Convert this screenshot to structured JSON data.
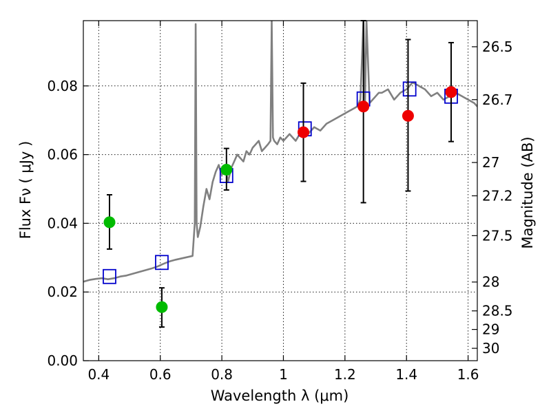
{
  "chart_data": {
    "type": "scatter",
    "title": "",
    "xlabel": "Wavelength  λ (μm)",
    "ylabel": "Flux  Fν  ( μJy )",
    "ylabel_right": "Magnitude (AB)",
    "xlim": [
      0.35,
      1.63
    ],
    "ylim": [
      0.0,
      0.099
    ],
    "grid": true,
    "x_ticks": [
      0.4,
      0.6,
      0.8,
      1.0,
      1.2,
      1.4,
      1.6
    ],
    "x_tick_labels": [
      "0.4",
      "0.6",
      "0.8",
      "1",
      "1.2",
      "1.4",
      "1.6"
    ],
    "y_ticks": [
      0.0,
      0.02,
      0.04,
      0.06,
      0.08
    ],
    "y_tick_labels": [
      "0.00",
      "0.02",
      "0.04",
      "0.06",
      "0.08"
    ],
    "right_ticks": [
      {
        "label": "26.5",
        "flux": 0.0914
      },
      {
        "label": "26.7",
        "flux": 0.076
      },
      {
        "label": "27",
        "flux": 0.0577
      },
      {
        "label": "27.2",
        "flux": 0.048
      },
      {
        "label": "27.5",
        "flux": 0.0364
      },
      {
        "label": "28",
        "flux": 0.0229
      },
      {
        "label": "28.5",
        "flux": 0.0145
      },
      {
        "label": "29",
        "flux": 0.0091
      },
      {
        "label": "30",
        "flux": 0.0036
      }
    ],
    "series": [
      {
        "name": "model_spectrum",
        "kind": "line",
        "color": "#808080",
        "x": [
          0.35,
          0.37,
          0.39,
          0.41,
          0.43,
          0.45,
          0.47,
          0.49,
          0.51,
          0.53,
          0.55,
          0.57,
          0.59,
          0.61,
          0.63,
          0.65,
          0.67,
          0.69,
          0.705,
          0.712,
          0.715,
          0.718,
          0.722,
          0.73,
          0.74,
          0.75,
          0.76,
          0.77,
          0.78,
          0.79,
          0.8,
          0.81,
          0.82,
          0.83,
          0.84,
          0.85,
          0.86,
          0.87,
          0.88,
          0.89,
          0.9,
          0.91,
          0.92,
          0.93,
          0.94,
          0.95,
          0.958,
          0.962,
          0.966,
          0.97,
          0.98,
          0.99,
          1.0,
          1.02,
          1.04,
          1.06,
          1.08,
          1.1,
          1.12,
          1.14,
          1.16,
          1.18,
          1.2,
          1.22,
          1.24,
          1.25,
          1.26,
          1.265,
          1.27,
          1.28,
          1.29,
          1.3,
          1.31,
          1.32,
          1.34,
          1.36,
          1.38,
          1.4,
          1.42,
          1.44,
          1.46,
          1.48,
          1.5,
          1.52,
          1.54,
          1.56,
          1.58,
          1.6,
          1.62,
          1.63
        ],
        "y": [
          0.023,
          0.0235,
          0.0238,
          0.024,
          0.0237,
          0.024,
          0.0245,
          0.0248,
          0.0253,
          0.0258,
          0.0263,
          0.0268,
          0.0274,
          0.0282,
          0.0289,
          0.0294,
          0.0298,
          0.0302,
          0.0305,
          0.04,
          0.098,
          0.04,
          0.036,
          0.039,
          0.045,
          0.05,
          0.047,
          0.052,
          0.055,
          0.057,
          0.054,
          0.057,
          0.052,
          0.056,
          0.058,
          0.06,
          0.059,
          0.058,
          0.061,
          0.06,
          0.062,
          0.063,
          0.064,
          0.061,
          0.062,
          0.063,
          0.064,
          0.099,
          0.065,
          0.064,
          0.063,
          0.065,
          0.064,
          0.066,
          0.064,
          0.067,
          0.066,
          0.068,
          0.067,
          0.069,
          0.07,
          0.071,
          0.072,
          0.073,
          0.074,
          0.076,
          0.099,
          0.074,
          0.099,
          0.075,
          0.076,
          0.077,
          0.078,
          0.078,
          0.079,
          0.076,
          0.078,
          0.079,
          0.081,
          0.08,
          0.079,
          0.077,
          0.078,
          0.076,
          0.077,
          0.078,
          0.077,
          0.076,
          0.075,
          0.074
        ]
      },
      {
        "name": "model_photometry",
        "kind": "open_square",
        "color": "#0000cc",
        "x": [
          0.435,
          0.605,
          0.815,
          1.07,
          1.26,
          1.41,
          1.545
        ],
        "y": [
          0.0245,
          0.0286,
          0.0539,
          0.0675,
          0.0762,
          0.0791,
          0.077
        ]
      },
      {
        "name": "observed_green",
        "kind": "filled_circle",
        "color": "#00bb00",
        "x": [
          0.435,
          0.605,
          0.815
        ],
        "y": [
          0.0403,
          0.0156,
          0.0556
        ],
        "err_low": [
          0.0325,
          0.0098,
          0.0497
        ],
        "err_high": [
          0.0483,
          0.0212,
          0.0618
        ]
      },
      {
        "name": "observed_red",
        "kind": "filled_circle",
        "color": "#ee0000",
        "x": [
          1.065,
          1.26,
          1.405,
          1.545
        ],
        "y": [
          0.0665,
          0.074,
          0.0713,
          0.0782
        ],
        "err_low": [
          0.0522,
          0.046,
          0.0494,
          0.0638
        ],
        "err_high": [
          0.0808,
          0.099,
          0.0935,
          0.0926
        ]
      }
    ]
  }
}
